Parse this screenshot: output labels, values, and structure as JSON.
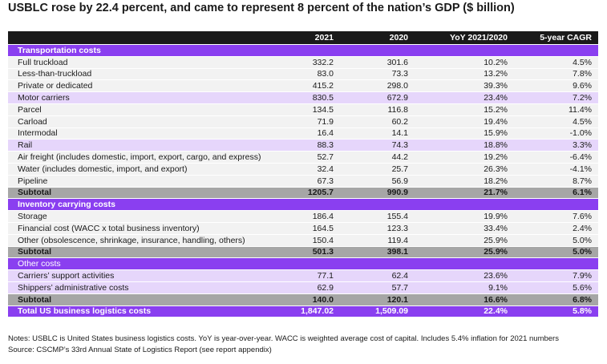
{
  "title": "USBLC rose by 22.4 percent, and came to represent 8 percent of the nation’s GDP ($ billion)",
  "columns": [
    "",
    "2021",
    "2020",
    "YoY 2021/2020",
    "5-year CAGR"
  ],
  "rows": [
    {
      "kind": "sec",
      "cells": [
        "Transportation costs",
        "",
        "",
        "",
        ""
      ]
    },
    {
      "kind": "data",
      "cells": [
        "Full truckload",
        "332.2",
        "301.6",
        "10.2%",
        "4.5%"
      ]
    },
    {
      "kind": "data",
      "cells": [
        "Less-than-truckload",
        "83.0",
        "73.3",
        "13.2%",
        "7.8%"
      ]
    },
    {
      "kind": "data",
      "cells": [
        "Private or dedicated",
        "415.2",
        "298.0",
        "39.3%",
        "9.6%"
      ]
    },
    {
      "kind": "data lav",
      "cells": [
        "Motor carriers",
        "830.5",
        "672.9",
        "23.4%",
        "7.2%"
      ]
    },
    {
      "kind": "data",
      "cells": [
        "Parcel",
        "134.5",
        "116.8",
        "15.2%",
        "11.4%"
      ]
    },
    {
      "kind": "data",
      "cells": [
        "Carload",
        "71.9",
        "60.2",
        "19.4%",
        "4.5%"
      ]
    },
    {
      "kind": "data",
      "cells": [
        "Intermodal",
        "16.4",
        "14.1",
        "15.9%",
        "-1.0%"
      ]
    },
    {
      "kind": "data lav",
      "cells": [
        "Rail",
        "88.3",
        "74.3",
        "18.8%",
        "3.3%"
      ]
    },
    {
      "kind": "data",
      "cells": [
        "Air freight (includes domestic, import, export, cargo, and express)",
        "52.7",
        "44.2",
        "19.2%",
        "-6.4%"
      ]
    },
    {
      "kind": "data",
      "cells": [
        "Water (includes domestic, import, and export)",
        "32.4",
        "25.7",
        "26.3%",
        "-4.1%"
      ]
    },
    {
      "kind": "data",
      "cells": [
        "Pipeline",
        "67.3",
        "56.9",
        "18.2%",
        "8.7%"
      ]
    },
    {
      "kind": "sub",
      "cells": [
        "Subtotal",
        "1205.7",
        "990.9",
        "21.7%",
        "6.1%"
      ]
    },
    {
      "kind": "sec",
      "cells": [
        "Inventory carrying costs",
        "",
        "",
        "",
        ""
      ]
    },
    {
      "kind": "data",
      "cells": [
        "Storage",
        "186.4",
        "155.4",
        "19.9%",
        "7.6%"
      ]
    },
    {
      "kind": "data",
      "cells": [
        "Financial cost (WACC x total business inventory)",
        "164.5",
        "123.3",
        "33.4%",
        "2.4%"
      ]
    },
    {
      "kind": "data",
      "cells": [
        "Other (obsolescence, shrinkage, insurance, handling, others)",
        "150.4",
        "119.4",
        "25.9%",
        "5.0%"
      ]
    },
    {
      "kind": "sub",
      "cells": [
        "Subtotal",
        "501.3",
        "398.1",
        "25.9%",
        "5.0%"
      ]
    },
    {
      "kind": "sec-light",
      "cells": [
        "Other costs",
        "",
        "",
        "",
        ""
      ]
    },
    {
      "kind": "data lav",
      "cells": [
        "Carriers’ support activities",
        "77.1",
        "62.4",
        "23.6%",
        "7.9%"
      ]
    },
    {
      "kind": "data lav",
      "cells": [
        "Shippers’ administrative costs",
        "62.9",
        "57.7",
        "9.1%",
        "5.6%"
      ]
    },
    {
      "kind": "sub",
      "cells": [
        "Subtotal",
        "140.0",
        "120.1",
        "16.6%",
        "6.8%"
      ]
    },
    {
      "kind": "total",
      "cells": [
        "Total US business logistics costs",
        "1,847.02",
        "1,509.09",
        "22.4%",
        "5.8%"
      ]
    }
  ],
  "notes": [
    "Notes: USBLC is United States business logistics costs. YoY is year-over-year. WACC is weighted average cost of capital. Includes 5.4% inflation for 2021 numbers",
    "Source: CSCMP’s 33rd Annual State of Logistics Report (see report appendix)"
  ]
}
